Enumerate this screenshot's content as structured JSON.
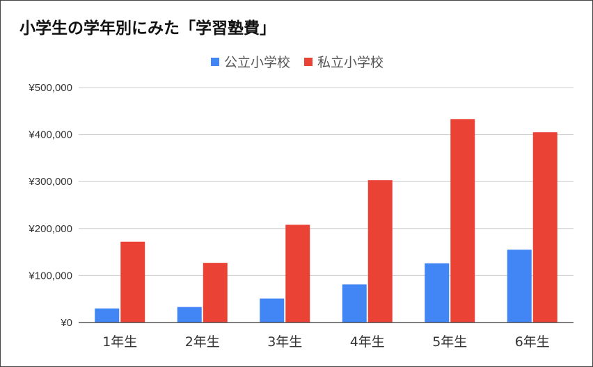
{
  "chart_data": {
    "type": "bar",
    "title": "小学生の学年別にみた「学習塾費」",
    "categories": [
      "1年生",
      "2年生",
      "3年生",
      "4年生",
      "5年生",
      "6年生"
    ],
    "series": [
      {
        "name": "公立小学校",
        "color": "#4285f4",
        "values": [
          30000,
          33000,
          51000,
          81000,
          126000,
          155000
        ]
      },
      {
        "name": "私立小学校",
        "color": "#ea4335",
        "values": [
          172000,
          127000,
          208000,
          303000,
          433000,
          405000
        ]
      }
    ],
    "ylim": [
      0,
      500000
    ],
    "yticks": [
      0,
      100000,
      200000,
      300000,
      400000,
      500000
    ],
    "ytick_labels": [
      "¥0",
      "¥100,000",
      "¥200,000",
      "¥300,000",
      "¥400,000",
      "¥500,000"
    ],
    "xlabel": "",
    "ylabel": "",
    "grid": true,
    "legend_position": "top"
  }
}
